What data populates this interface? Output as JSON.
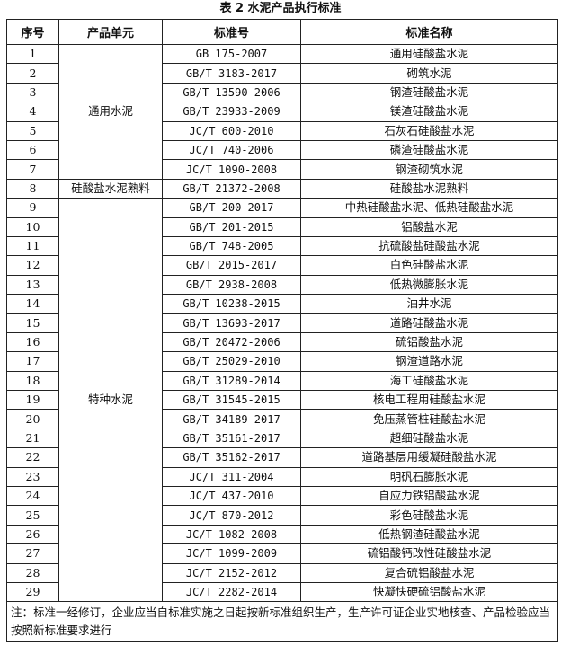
{
  "title": "表 2  水泥产品执行标准",
  "headers": [
    "序号",
    "产品单元",
    "标准号",
    "标准名称"
  ],
  "groups": [
    {
      "unit": "通用水泥",
      "rows": [
        {
          "no": "1",
          "code": "GB 175-2007",
          "name": "通用硅酸盐水泥"
        },
        {
          "no": "2",
          "code": "GB/T 3183-2017",
          "name": "砌筑水泥"
        },
        {
          "no": "3",
          "code": "GB/T 13590-2006",
          "name": "钢渣硅酸盐水泥"
        },
        {
          "no": "4",
          "code": "GB/T 23933-2009",
          "name": "镁渣硅酸盐水泥"
        },
        {
          "no": "5",
          "code": "JC/T 600-2010",
          "name": "石灰石硅酸盐水泥"
        },
        {
          "no": "6",
          "code": "JC/T 740-2006",
          "name": "磷渣硅酸盐水泥"
        },
        {
          "no": "7",
          "code": "JC/T 1090-2008",
          "name": "钢渣砌筑水泥"
        }
      ]
    },
    {
      "unit": "硅酸盐水泥熟料",
      "rows": [
        {
          "no": "8",
          "code": "GB/T 21372-2008",
          "name": "硅酸盐水泥熟料"
        }
      ]
    },
    {
      "unit": "特种水泥",
      "rows": [
        {
          "no": "9",
          "code": "GB/T 200-2017",
          "name": "中热硅酸盐水泥、低热硅酸盐水泥"
        },
        {
          "no": "10",
          "code": "GB/T 201-2015",
          "name": "铝酸盐水泥"
        },
        {
          "no": "11",
          "code": "GB/T 748-2005",
          "name": "抗硫酸盐硅酸盐水泥"
        },
        {
          "no": "12",
          "code": "GB/T 2015-2017",
          "name": "白色硅酸盐水泥"
        },
        {
          "no": "13",
          "code": "GB/T 2938-2008",
          "name": "低热微膨胀水泥"
        },
        {
          "no": "14",
          "code": "GB/T 10238-2015",
          "name": "油井水泥"
        },
        {
          "no": "15",
          "code": "GB/T 13693-2017",
          "name": "道路硅酸盐水泥"
        },
        {
          "no": "16",
          "code": "GB/T 20472-2006",
          "name": "硫铝酸盐水泥"
        },
        {
          "no": "17",
          "code": "GB/T 25029-2010",
          "name": "钢渣道路水泥"
        },
        {
          "no": "18",
          "code": "GB/T 31289-2014",
          "name": "海工硅酸盐水泥"
        },
        {
          "no": "19",
          "code": "GB/T 31545-2015",
          "name": "核电工程用硅酸盐水泥"
        },
        {
          "no": "20",
          "code": "GB/T 34189-2017",
          "name": "免压蒸管桩硅酸盐水泥"
        },
        {
          "no": "21",
          "code": "GB/T 35161-2017",
          "name": "超细硅酸盐水泥"
        },
        {
          "no": "22",
          "code": "GB/T 35162-2017",
          "name": "道路基层用缓凝硅酸盐水泥"
        },
        {
          "no": "23",
          "code": "JC/T 311-2004",
          "name": "明矾石膨胀水泥"
        },
        {
          "no": "24",
          "code": "JC/T 437-2010",
          "name": "自应力铁铝酸盐水泥"
        },
        {
          "no": "25",
          "code": "JC/T 870-2012",
          "name": "彩色硅酸盐水泥"
        },
        {
          "no": "26",
          "code": "JC/T 1082-2008",
          "name": "低热钢渣硅酸盐水泥"
        },
        {
          "no": "27",
          "code": "JC/T 1099-2009",
          "name": "硫铝酸钙改性硅酸盐水泥"
        },
        {
          "no": "28",
          "code": "JC/T 2152-2012",
          "name": "复合硫铝酸盐水泥"
        },
        {
          "no": "29",
          "code": "JC/T 2282-2014",
          "name": "快凝快硬硫铝酸盐水泥"
        }
      ]
    }
  ],
  "note": "注：标准一经修订，企业应当自标准实施之日起按新标准组织生产，生产许可证企业实地核查、产品检验应当按照新标准要求进行"
}
